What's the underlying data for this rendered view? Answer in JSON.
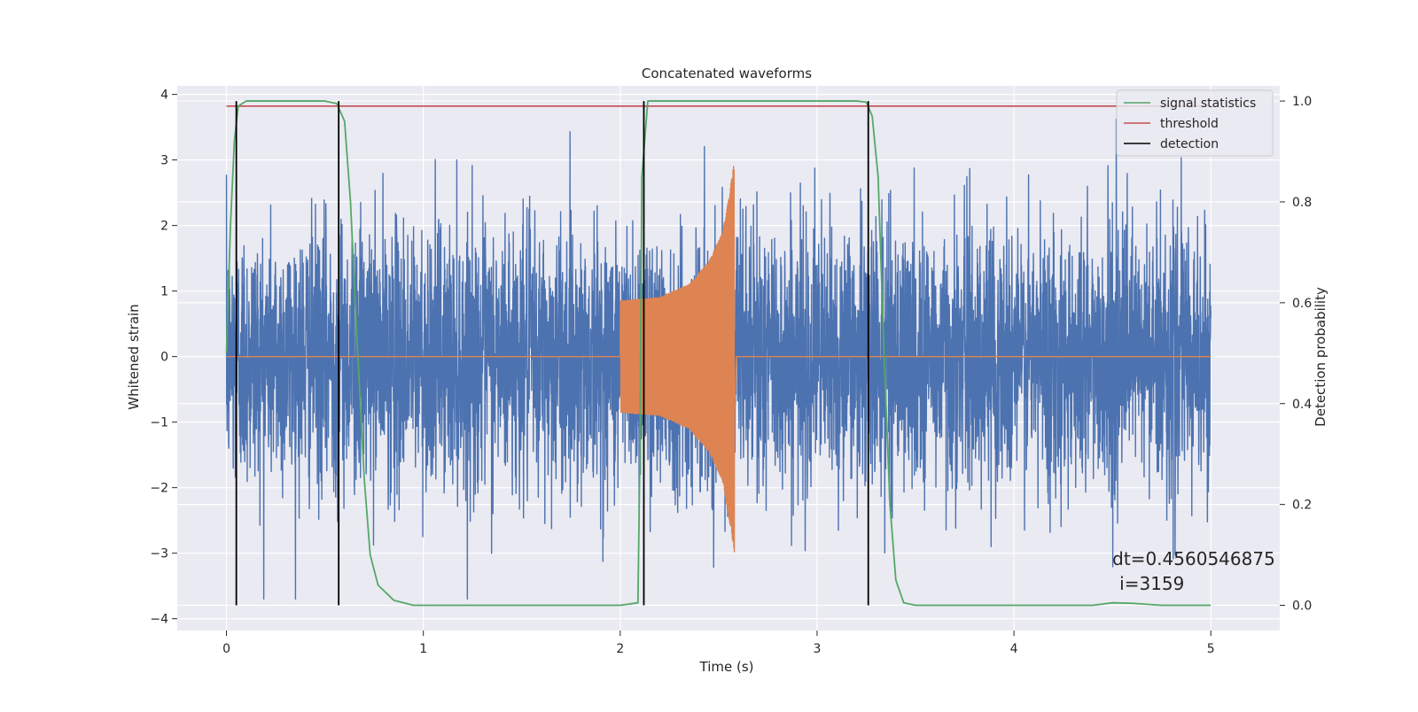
{
  "chart_data": {
    "type": "line",
    "title": "Concatenated waveforms",
    "xlabel": "Time (s)",
    "ylabel": "Whitened strain",
    "y2label": "Detection probability",
    "xlim": [
      -0.25,
      5.35
    ],
    "ylim": [
      -4.18,
      4.13
    ],
    "y2lim": [
      -0.05,
      1.03
    ],
    "xticks": [
      0,
      1,
      2,
      3,
      4,
      5
    ],
    "yticks": [
      -4,
      -3,
      -2,
      -1,
      0,
      1,
      2,
      3,
      4
    ],
    "y2ticks": [
      0.0,
      0.2,
      0.4,
      0.6,
      0.8,
      1.0
    ],
    "y2tick_labels": [
      "0.0",
      "0.2",
      "0.4",
      "0.6",
      "0.8",
      "1.0"
    ],
    "grid": true,
    "legend_position": "top-right",
    "series": [
      {
        "name": "",
        "axis": "left",
        "color": "#4c72b0",
        "kind": "noise",
        "x_range": [
          0,
          5
        ],
        "sample_rate_hz": 1024,
        "approx_std": 1.0,
        "approx_peak_abs": 3.7
      },
      {
        "name": "",
        "axis": "left",
        "color": "#dd8452",
        "kind": "chirp",
        "x_range": [
          2.0,
          2.58
        ],
        "envelope": [
          {
            "x": 2.0,
            "amp": 0.85
          },
          {
            "x": 2.2,
            "amp": 0.9
          },
          {
            "x": 2.35,
            "amp": 1.1
          },
          {
            "x": 2.45,
            "amp": 1.45
          },
          {
            "x": 2.52,
            "amp": 1.9
          },
          {
            "x": 2.56,
            "amp": 2.6
          },
          {
            "x": 2.58,
            "amp": 3.0
          }
        ]
      },
      {
        "name": "signal statistics",
        "axis": "right",
        "color": "#55a868",
        "points": [
          [
            0.0,
            0.5
          ],
          [
            0.02,
            0.75
          ],
          [
            0.04,
            0.92
          ],
          [
            0.06,
            0.99
          ],
          [
            0.1,
            1.0
          ],
          [
            0.5,
            1.0
          ],
          [
            0.56,
            0.995
          ],
          [
            0.6,
            0.96
          ],
          [
            0.63,
            0.8
          ],
          [
            0.66,
            0.55
          ],
          [
            0.7,
            0.25
          ],
          [
            0.73,
            0.1
          ],
          [
            0.77,
            0.04
          ],
          [
            0.85,
            0.01
          ],
          [
            0.95,
            0.0
          ],
          [
            2.0,
            0.0
          ],
          [
            2.09,
            0.005
          ],
          [
            2.1,
            0.3
          ],
          [
            2.11,
            0.85
          ],
          [
            2.14,
            1.0
          ],
          [
            3.2,
            1.0
          ],
          [
            3.25,
            0.998
          ],
          [
            3.28,
            0.97
          ],
          [
            3.31,
            0.85
          ],
          [
            3.34,
            0.5
          ],
          [
            3.37,
            0.2
          ],
          [
            3.4,
            0.05
          ],
          [
            3.44,
            0.005
          ],
          [
            3.5,
            0.0
          ],
          [
            4.4,
            0.0
          ],
          [
            4.5,
            0.005
          ],
          [
            4.6,
            0.004
          ],
          [
            4.75,
            0.0
          ],
          [
            5.0,
            0.0
          ]
        ]
      },
      {
        "name": "threshold",
        "axis": "right",
        "color": "#c44e52",
        "value": 0.99,
        "x_range": [
          0,
          5
        ]
      },
      {
        "name": "detection",
        "axis": "right",
        "color": "#000000",
        "x_values": [
          0.05,
          0.57,
          2.12,
          3.26
        ],
        "y_range": [
          0.0,
          1.0
        ]
      }
    ],
    "annotation_lines": [
      "dt=0.4560546875",
      "i=3159"
    ],
    "annotation_anchor": {
      "x": 4.5,
      "y": 0.08
    }
  }
}
